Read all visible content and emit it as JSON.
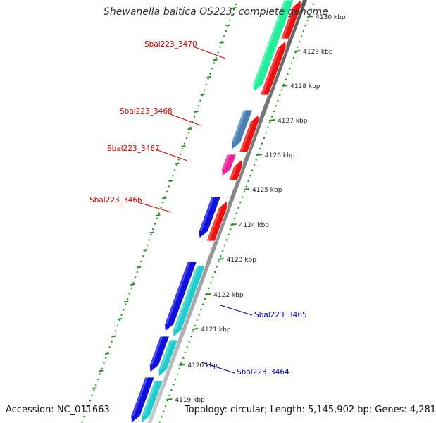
{
  "title": "Shewanella baltica OS223, complete genome",
  "accession": "Accession: NC_011663",
  "summary": "Topology: circular; Length: 5,145,902 bp; Genes: 4,281",
  "colors": {
    "backbone": "#9a9a9a",
    "ticks": "#2a8a2a",
    "label_red": "#cc0000",
    "label_blue": "#0000aa"
  },
  "ticks": [
    "4130 kbp",
    "4129 kbp",
    "4128 kbp",
    "4127 kbp",
    "4126 kbp",
    "4125 kbp",
    "4124 kbp",
    "4123 kbp",
    "4122 kbp",
    "4121 kbp",
    "4120 kbp",
    "4119 kbp"
  ],
  "gene_labels": [
    {
      "text": "Sbal223_3470",
      "color": "#cc0000"
    },
    {
      "text": "Sbal223_3468",
      "color": "#cc0000"
    },
    {
      "text": "Sbal223_3467",
      "color": "#cc0000"
    },
    {
      "text": "Sbal223_3466",
      "color": "#cc0000"
    },
    {
      "text": "Sbal223_3465",
      "color": "#0000aa"
    },
    {
      "text": "Sbal223_3464",
      "color": "#0000aa"
    }
  ],
  "tracks": {
    "inner_genes": [
      "#ee1111",
      "#ee1111",
      "#ee1111",
      "#ee1111",
      "#ee1111"
    ],
    "outer_genes": [
      "#22ee99",
      "#4a7fb5",
      "#ee2299",
      "#1111dd",
      "#1111dd",
      "#1111dd",
      "#1111dd"
    ],
    "cds_genes": [
      "#22cccc",
      "#22cccc",
      "#22cccc"
    ]
  }
}
